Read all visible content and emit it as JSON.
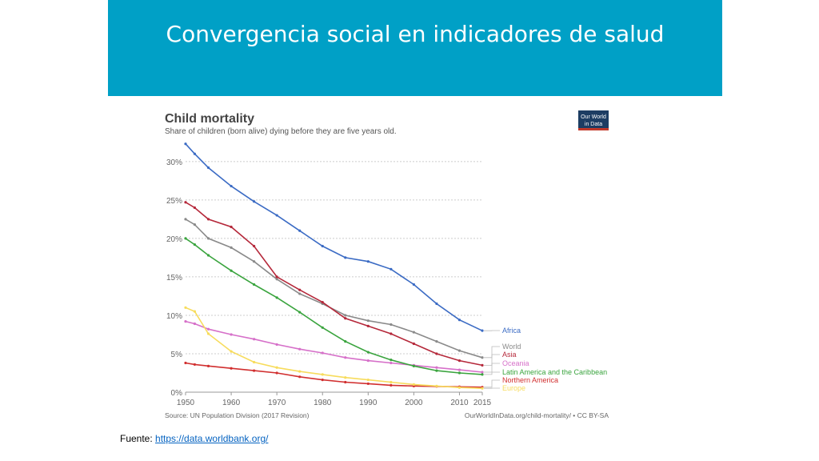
{
  "slide": {
    "title": "Convergencia social en indicadores de salud",
    "source_label": "Fuente: ",
    "source_link": "https://data.worldbank.org/",
    "banner_color": "#00a0c6"
  },
  "logo": {
    "line1": "Our World",
    "line2": "in Data",
    "bg_color": "#1d3d63",
    "accent_color": "#c0392b"
  },
  "chart_data": {
    "type": "line",
    "title": "Child mortality",
    "subtitle": "Share of children (born alive) dying before they are five years old.",
    "xlabel": "",
    "ylabel": "",
    "xlim": [
      1950,
      2015
    ],
    "ylim": [
      0,
      33
    ],
    "x_ticks": [
      "1950",
      "1960",
      "1970",
      "1980",
      "1990",
      "2000",
      "2010",
      "2015"
    ],
    "y_ticks": [
      "0%",
      "5%",
      "10%",
      "15%",
      "20%",
      "25%",
      "30%"
    ],
    "grid": "horizontal dotted",
    "source_left": "Source: UN Population Division (2017 Revision)",
    "source_right": "OurWorldInData.org/child-mortality/ • CC BY-SA",
    "x": [
      1950,
      1952,
      1955,
      1960,
      1965,
      1970,
      1975,
      1980,
      1985,
      1990,
      1995,
      2000,
      2005,
      2010,
      2015
    ],
    "series": [
      {
        "name": "Africa",
        "color": "#3b6bc4",
        "values": [
          32.3,
          31.0,
          29.2,
          26.8,
          24.8,
          23.0,
          21.0,
          19.0,
          17.5,
          17.0,
          16.0,
          14.0,
          11.5,
          9.4,
          8.0
        ]
      },
      {
        "name": "World",
        "color": "#8a8a8a",
        "values": [
          22.5,
          21.8,
          20.0,
          18.8,
          17.0,
          14.7,
          12.8,
          11.5,
          10.0,
          9.3,
          8.8,
          7.8,
          6.6,
          5.4,
          4.5
        ]
      },
      {
        "name": "Asia",
        "color": "#b5283a",
        "values": [
          24.7,
          24.0,
          22.5,
          21.5,
          19.0,
          15.0,
          13.3,
          11.7,
          9.6,
          8.6,
          7.6,
          6.3,
          5.0,
          4.1,
          3.5
        ]
      },
      {
        "name": "Oceania",
        "color": "#d670c9",
        "values": [
          9.2,
          8.9,
          8.2,
          7.5,
          6.9,
          6.2,
          5.6,
          5.1,
          4.5,
          4.1,
          3.8,
          3.5,
          3.2,
          2.9,
          2.6
        ]
      },
      {
        "name": "Latin America and the Caribbean",
        "color": "#3aa43e",
        "values": [
          20.0,
          19.2,
          17.8,
          15.8,
          14.0,
          12.3,
          10.4,
          8.4,
          6.6,
          5.2,
          4.2,
          3.4,
          2.8,
          2.5,
          2.3
        ]
      },
      {
        "name": "Northern America",
        "color": "#d12f2f",
        "values": [
          3.8,
          3.6,
          3.4,
          3.1,
          2.8,
          2.5,
          2.0,
          1.6,
          1.3,
          1.1,
          0.9,
          0.8,
          0.75,
          0.7,
          0.65
        ]
      },
      {
        "name": "Europe",
        "color": "#f7dc5c",
        "values": [
          11.0,
          10.5,
          7.6,
          5.3,
          3.9,
          3.2,
          2.7,
          2.3,
          1.9,
          1.6,
          1.3,
          1.0,
          0.8,
          0.6,
          0.5
        ]
      }
    ]
  }
}
